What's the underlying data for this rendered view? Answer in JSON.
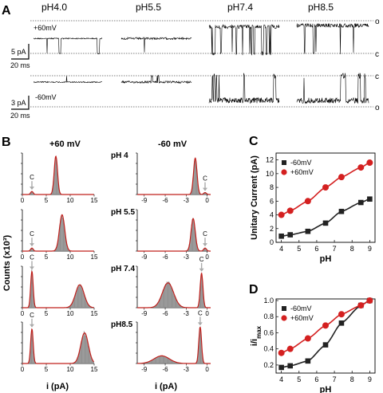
{
  "panels": {
    "A": "A",
    "B": "B",
    "C": "C",
    "D": "D"
  },
  "panel_A": {
    "ph_headers": [
      "pH4.0",
      "pH5.5",
      "pH7.4",
      "pH8.5"
    ],
    "top_voltage": "+60mV",
    "bottom_voltage": "-60mV",
    "top_levels": {
      "open": "o",
      "closed": "c"
    },
    "bottom_levels": {
      "closed": "c",
      "open": "o"
    },
    "scale_top": {
      "amplitude": "5 pA",
      "time": "20 ms"
    },
    "scale_bottom": {
      "amplitude": "3 pA",
      "time": "20 ms"
    },
    "trace_traits": {
      "top": [
        {
          "ph": "pH4.0",
          "open_fraction": 0.95,
          "noise": "low"
        },
        {
          "ph": "pH5.5",
          "open_fraction": 0.95,
          "noise": "moderate"
        },
        {
          "ph": "pH7.4",
          "open_fraction": 0.6,
          "noise": "high"
        },
        {
          "ph": "pH8.5",
          "open_fraction": 0.85,
          "noise": "high"
        }
      ],
      "bottom": [
        {
          "ph": "pH4.0",
          "open_fraction": 0.95,
          "noise": "low"
        },
        {
          "ph": "pH5.5",
          "open_fraction": 0.9,
          "noise": "moderate"
        },
        {
          "ph": "pH7.4",
          "open_fraction": 0.6,
          "noise": "high"
        },
        {
          "ph": "pH8.5",
          "open_fraction": 0.85,
          "noise": "high"
        }
      ]
    }
  },
  "panel_B": {
    "col_headers": [
      "+60 mV",
      "-60 mV"
    ],
    "row_labels": [
      "pH 4",
      "pH 5.5",
      "pH 7.4",
      "pH8.5"
    ],
    "ylabel": "Counts (x10³)",
    "xlabel": "i (pA)",
    "closed_marker": "C",
    "colors": {
      "hist": "#8c8c8c",
      "fit": "#c0201c",
      "arrow": "#aaaaaa"
    }
  },
  "chart_data": [
    {
      "type": "line",
      "id": "C",
      "xlabel": "pH",
      "ylabel": "Unitary Current (pA)",
      "xlim": [
        3.7,
        9.3
      ],
      "ylim": [
        0,
        13
      ],
      "xticks": [
        4,
        5,
        6,
        7,
        8,
        9
      ],
      "yticks": [
        0,
        2,
        4,
        6,
        8,
        10,
        12
      ],
      "legend": "top-left",
      "series": [
        {
          "name": "-60mV",
          "marker": "square",
          "color": "#222222",
          "x": [
            4,
            4.5,
            5.5,
            6.5,
            7.4,
            8.5,
            9
          ],
          "y": [
            0.9,
            1.1,
            1.6,
            2.8,
            4.5,
            5.8,
            6.3
          ]
        },
        {
          "name": "+60mV",
          "marker": "circle",
          "color": "#d42020",
          "x": [
            4,
            4.5,
            5.5,
            6.5,
            7.4,
            8.5,
            9
          ],
          "y": [
            4.0,
            4.6,
            6.0,
            8.0,
            9.5,
            10.9,
            11.6
          ]
        }
      ]
    },
    {
      "type": "line",
      "id": "D",
      "xlabel": "pH",
      "ylabel": "i/i_max",
      "xlim": [
        3.7,
        9.3
      ],
      "ylim": [
        0.1,
        1.02
      ],
      "xticks": [
        4,
        5,
        6,
        7,
        8,
        9
      ],
      "yticks": [
        0.2,
        0.4,
        0.6,
        0.8,
        1.0
      ],
      "ytick_labels": [
        "0.2",
        "0.4",
        "0.6",
        "0.8",
        "1.0"
      ],
      "legend": "top-left",
      "series": [
        {
          "name": "-60mV",
          "marker": "square",
          "color": "#222222",
          "x": [
            4,
            4.5,
            5.5,
            6.5,
            7.4,
            8.5,
            9
          ],
          "y": [
            0.17,
            0.19,
            0.25,
            0.45,
            0.72,
            0.94,
            1.0
          ]
        },
        {
          "name": "+60mV",
          "marker": "circle",
          "color": "#d42020",
          "x": [
            4,
            4.5,
            5.5,
            6.5,
            7.4,
            8.5,
            9
          ],
          "y": [
            0.35,
            0.4,
            0.53,
            0.69,
            0.83,
            0.94,
            1.0
          ]
        }
      ]
    },
    {
      "type": "histogram",
      "id": "B-left",
      "xlim": [
        0,
        15
      ],
      "xticks": [
        0,
        5,
        10,
        15
      ],
      "ylim": [
        0,
        1
      ],
      "rows": [
        {
          "ph": "pH 4",
          "closed_peak": 2.0,
          "closed_height": 0.08,
          "open_peak": 7.0,
          "open_width": 0.35,
          "open_height": 1.0
        },
        {
          "ph": "pH 5.5",
          "closed_peak": 2.0,
          "closed_height": 0.08,
          "open_peak": 8.3,
          "open_width": 0.55,
          "open_height": 0.95
        },
        {
          "ph": "pH 7.4",
          "closed_peak": 2.0,
          "closed_height": 0.95,
          "open_peak": 12.0,
          "open_width": 0.9,
          "open_height": 0.6
        },
        {
          "ph": "pH8.5",
          "closed_peak": 2.0,
          "closed_height": 0.9,
          "open_peak": 13.0,
          "open_width": 0.8,
          "open_height": 0.8
        }
      ]
    },
    {
      "type": "histogram",
      "id": "B-right",
      "xlim": [
        -10,
        0.5
      ],
      "xticks": [
        -9,
        -6,
        -3,
        0
      ],
      "ylim": [
        0,
        1
      ],
      "rows": [
        {
          "ph": "pH 4",
          "closed_peak": -0.3,
          "closed_height": 0.05,
          "open_peak": -1.7,
          "open_width": 0.25,
          "open_height": 0.95
        },
        {
          "ph": "pH 5.5",
          "closed_peak": -0.3,
          "closed_height": 0.08,
          "open_peak": -2.0,
          "open_width": 0.3,
          "open_height": 0.85
        },
        {
          "ph": "pH 7.4",
          "closed_peak": -0.8,
          "closed_height": 0.9,
          "open_peak": -5.6,
          "open_width": 0.8,
          "open_height": 0.65
        },
        {
          "ph": "pH8.5",
          "closed_peak": -1.0,
          "closed_height": 0.95,
          "open_peak": -6.5,
          "open_width": 1.1,
          "open_height": 0.2
        }
      ]
    }
  ]
}
